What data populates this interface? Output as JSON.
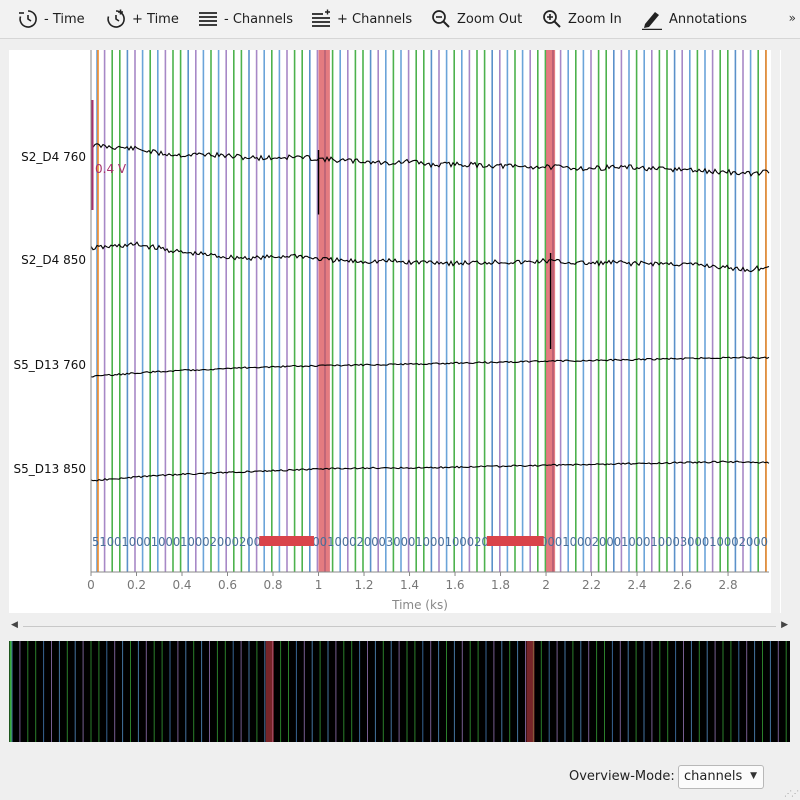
{
  "toolbar": {
    "buttons": [
      {
        "label": "- Time",
        "icon": "clock-minus-icon"
      },
      {
        "label": "+ Time",
        "icon": "clock-plus-icon"
      },
      {
        "label": "- Channels",
        "icon": "channels-minus-icon"
      },
      {
        "label": "+ Channels",
        "icon": "channels-plus-icon"
      },
      {
        "label": "Zoom Out",
        "icon": "zoom-out-icon"
      },
      {
        "label": "Zoom In",
        "icon": "zoom-in-icon"
      },
      {
        "label": "Annotations",
        "icon": "pencil-icon"
      }
    ],
    "overflow": "»"
  },
  "chart_data": {
    "type": "line",
    "xlabel": "Time (ks)",
    "xlim": [
      0,
      2.98
    ],
    "xticks": [
      "0",
      "0.2",
      "0.4",
      "0.6",
      "0.8",
      "1",
      "1.2",
      "1.4",
      "1.6",
      "1.8",
      "2",
      "2.2",
      "2.4",
      "2.6",
      "2.8"
    ],
    "channels": [
      "S2_D4 760",
      "S2_D4 850",
      "S5_D13 760",
      "S5_D13 850"
    ],
    "scale_bar_label": "0.4 V",
    "series": [
      {
        "name": "S2_D4 760",
        "x": [
          0.0,
          0.1,
          0.2,
          0.3,
          0.4,
          0.5,
          0.6,
          0.7,
          0.8,
          0.9,
          1.0,
          1.1,
          1.2,
          1.3,
          1.4,
          1.5,
          1.6,
          1.7,
          1.8,
          1.9,
          2.0,
          2.1,
          2.2,
          2.3,
          2.4,
          2.5,
          2.6,
          2.7,
          2.8,
          2.9,
          2.98
        ],
        "values": [
          0.12,
          0.1,
          0.08,
          0.03,
          0.01,
          0.02,
          0.0,
          -0.02,
          -0.02,
          -0.01,
          -0.03,
          -0.05,
          -0.06,
          -0.08,
          -0.06,
          -0.1,
          -0.09,
          -0.1,
          -0.11,
          -0.12,
          -0.12,
          -0.13,
          -0.14,
          -0.12,
          -0.13,
          -0.15,
          -0.15,
          -0.17,
          -0.18,
          -0.2,
          -0.17
        ],
        "spikes": [
          {
            "x": 1.0,
            "value": -0.65
          }
        ]
      },
      {
        "name": "S2_D4 850",
        "x": [
          0.0,
          0.1,
          0.2,
          0.3,
          0.4,
          0.5,
          0.6,
          0.7,
          0.8,
          0.9,
          1.0,
          1.1,
          1.2,
          1.3,
          1.4,
          1.5,
          1.6,
          1.7,
          1.8,
          1.9,
          2.0,
          2.1,
          2.2,
          2.3,
          2.4,
          2.5,
          2.6,
          2.7,
          2.8,
          2.9,
          2.98
        ],
        "values": [
          0.12,
          0.14,
          0.16,
          0.12,
          0.07,
          0.05,
          0.02,
          0.01,
          0.02,
          0.04,
          0.0,
          -0.02,
          -0.03,
          -0.02,
          -0.04,
          -0.03,
          -0.05,
          -0.04,
          -0.03,
          -0.04,
          -0.02,
          -0.04,
          -0.05,
          -0.04,
          -0.05,
          -0.05,
          -0.06,
          -0.07,
          -0.1,
          -0.12,
          -0.08
        ],
        "spikes": [
          {
            "x": 2.02,
            "value": -1.0
          }
        ]
      },
      {
        "name": "S5_D13 760",
        "x": [
          0.0,
          0.2,
          0.4,
          0.6,
          0.8,
          1.0,
          1.2,
          1.4,
          1.6,
          1.8,
          2.0,
          2.2,
          2.4,
          2.6,
          2.8,
          2.98
        ],
        "values": [
          -0.14,
          -0.1,
          -0.07,
          -0.05,
          -0.03,
          -0.02,
          -0.01,
          0.0,
          0.01,
          0.02,
          0.03,
          0.04,
          0.05,
          0.06,
          0.07,
          0.07
        ],
        "spikes": []
      },
      {
        "name": "S5_D13 850",
        "x": [
          0.0,
          0.2,
          0.4,
          0.6,
          0.8,
          1.0,
          1.2,
          1.4,
          1.6,
          1.8,
          2.0,
          2.2,
          2.4,
          2.6,
          2.8,
          2.98
        ],
        "values": [
          -0.14,
          -0.1,
          -0.07,
          -0.05,
          -0.03,
          -0.01,
          0.0,
          0.0,
          0.01,
          0.02,
          0.03,
          0.04,
          0.05,
          0.06,
          0.07,
          0.06
        ],
        "spikes": []
      }
    ],
    "annotation_spans": [
      {
        "start": 1.0,
        "end": 1.05,
        "color": "#d9434a"
      },
      {
        "start": 2.0,
        "end": 2.04,
        "color": "#d9434a"
      }
    ],
    "event_line_colors": [
      "#f28c28",
      "#5b9bd5",
      "#9e7cc1",
      "#3aaa3a",
      "#4a86c5",
      "#d9434a"
    ],
    "event_labels_text": "51001000100010002000200030001000100020003000100010002000100020001000200010001000300010002000"
  },
  "overview": {
    "mode_label": "Overview-Mode:",
    "mode_value": "channels"
  },
  "colors": {
    "annotation": "#d9434a",
    "signal": "#000000",
    "axis": "#888888"
  }
}
